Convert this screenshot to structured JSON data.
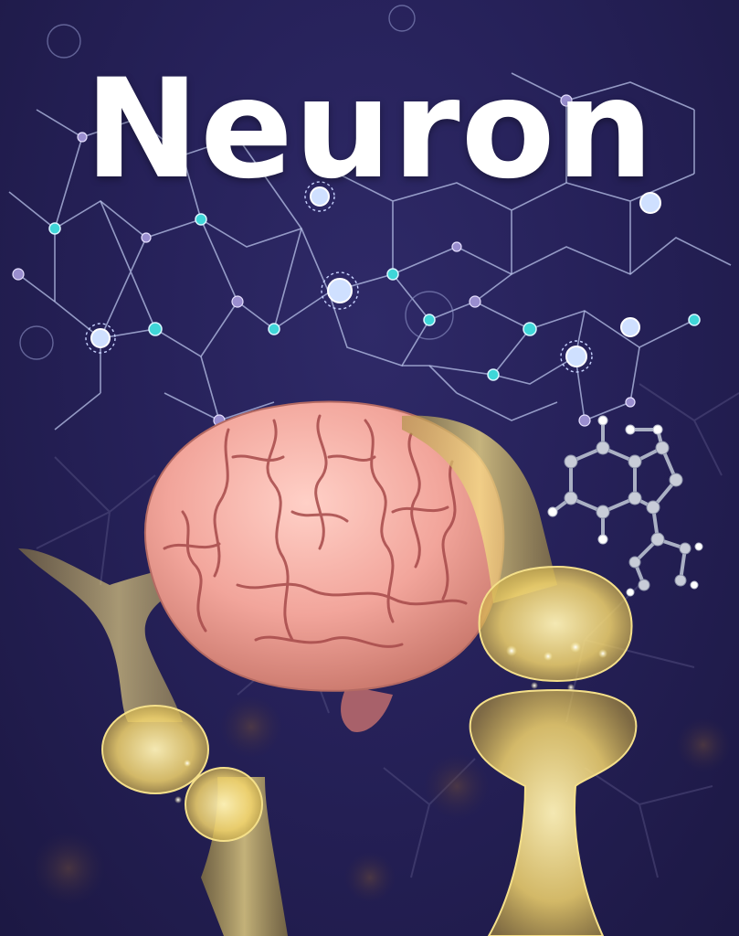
{
  "cover": {
    "title": "Neuron"
  },
  "colors": {
    "background": "#262159",
    "network_line": "#b9c3ea",
    "network_node_accent": "#3fd6d8",
    "network_node_violet": "#9a8ecf",
    "brain": "#f0a39a",
    "brain_fold": "#a64a4a",
    "synapse_glow": "#ffe48a",
    "molecule": "#c8ccd8"
  },
  "icons": [
    "neural-network-graphic",
    "brain-illustration",
    "synapse-illustration",
    "molecule-model"
  ]
}
